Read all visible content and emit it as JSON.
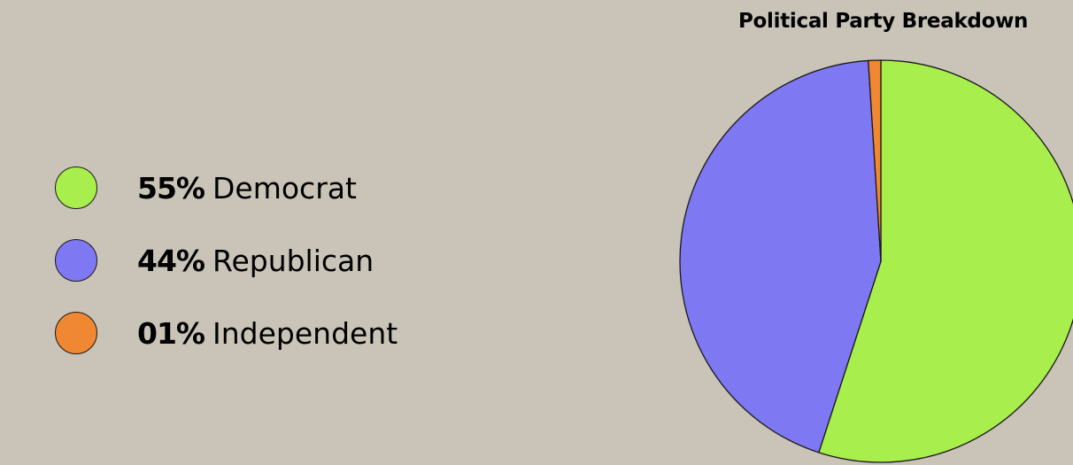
{
  "chart_data": {
    "type": "pie",
    "title": "Political Party Breakdown",
    "slices": [
      {
        "label": "Democrat",
        "value": 55,
        "value_text": "55%",
        "color": "#a8ee4c"
      },
      {
        "label": "Republican",
        "value": 44,
        "value_text": "44%",
        "color": "#7e78f2"
      },
      {
        "label": "Independent",
        "value": 1,
        "value_text": "01%",
        "color": "#f08732"
      }
    ],
    "start": "top",
    "direction": "clockwise",
    "legend_position": "left"
  }
}
